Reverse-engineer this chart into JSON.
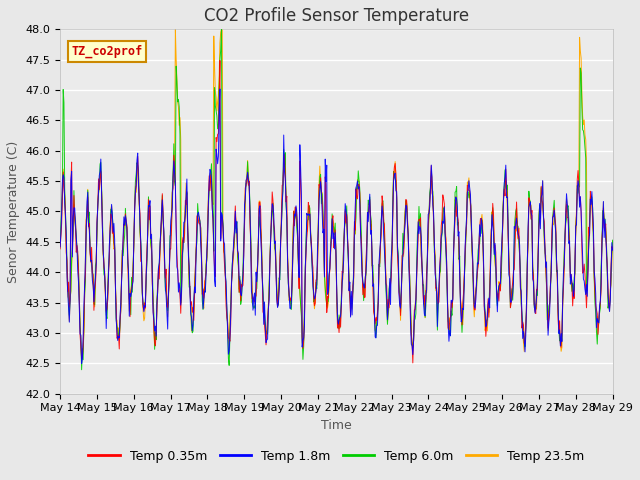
{
  "title": "CO2 Profile Sensor Temperature",
  "ylabel": "Senor Temperature (C)",
  "xlabel": "Time",
  "ylim": [
    42.0,
    48.0
  ],
  "yticks": [
    42.0,
    42.5,
    43.0,
    43.5,
    44.0,
    44.5,
    45.0,
    45.5,
    46.0,
    46.5,
    47.0,
    47.5,
    48.0
  ],
  "xtick_labels": [
    "May 14",
    "May 15",
    "May 16",
    "May 17",
    "May 18",
    "May 19",
    "May 20",
    "May 21",
    "May 22",
    "May 23",
    "May 24",
    "May 25",
    "May 26",
    "May 27",
    "May 28",
    "May 29"
  ],
  "legend_labels": [
    "Temp 0.35m",
    "Temp 1.8m",
    "Temp 6.0m",
    "Temp 23.5m"
  ],
  "legend_colors": [
    "#ff0000",
    "#0000ff",
    "#00cc00",
    "#ffaa00"
  ],
  "watermark_text": "TZ_co2prof",
  "watermark_color": "#cc0000",
  "watermark_bg": "#ffffcc",
  "watermark_border": "#cc8800",
  "background_color": "#e8e8e8",
  "plot_bg_color": "#ebebeb",
  "grid_color": "#ffffff",
  "title_fontsize": 12,
  "axis_label_fontsize": 9,
  "tick_fontsize": 8
}
